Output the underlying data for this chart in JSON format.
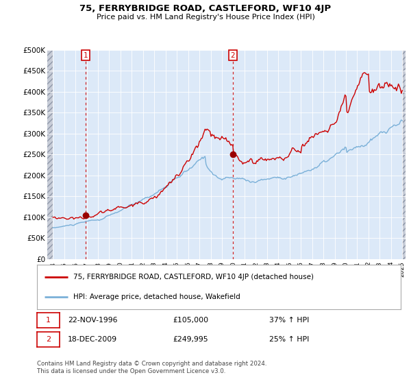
{
  "title": "75, FERRYBRIDGE ROAD, CASTLEFORD, WF10 4JP",
  "subtitle": "Price paid vs. HM Land Registry's House Price Index (HPI)",
  "legend_line1": "75, FERRYBRIDGE ROAD, CASTLEFORD, WF10 4JP (detached house)",
  "legend_line2": "HPI: Average price, detached house, Wakefield",
  "annotation1_date": "22-NOV-1996",
  "annotation1_price": "£105,000",
  "annotation1_hpi": "37% ↑ HPI",
  "annotation2_date": "18-DEC-2009",
  "annotation2_price": "£249,995",
  "annotation2_hpi": "25% ↑ HPI",
  "footer": "Contains HM Land Registry data © Crown copyright and database right 2024.\nThis data is licensed under the Open Government Licence v3.0.",
  "background_color": "#dce9f8",
  "grid_color": "#ffffff",
  "red_line_color": "#cc0000",
  "blue_line_color": "#7ab0d8",
  "marker_color": "#990000",
  "dashed_line_color": "#cc0000",
  "annotation_box_color": "#cc0000",
  "ylim": [
    0,
    500000
  ],
  "yticks": [
    0,
    50000,
    100000,
    150000,
    200000,
    250000,
    300000,
    350000,
    400000,
    450000,
    500000
  ],
  "ytick_labels": [
    "£0",
    "£50K",
    "£100K",
    "£150K",
    "£200K",
    "£250K",
    "£300K",
    "£350K",
    "£400K",
    "£450K",
    "£500K"
  ],
  "sale1_x": 1996.9,
  "sale1_y": 105000,
  "sale2_x": 2009.96,
  "sale2_y": 249995,
  "xmin": 1994.0,
  "xmax": 2025.0
}
